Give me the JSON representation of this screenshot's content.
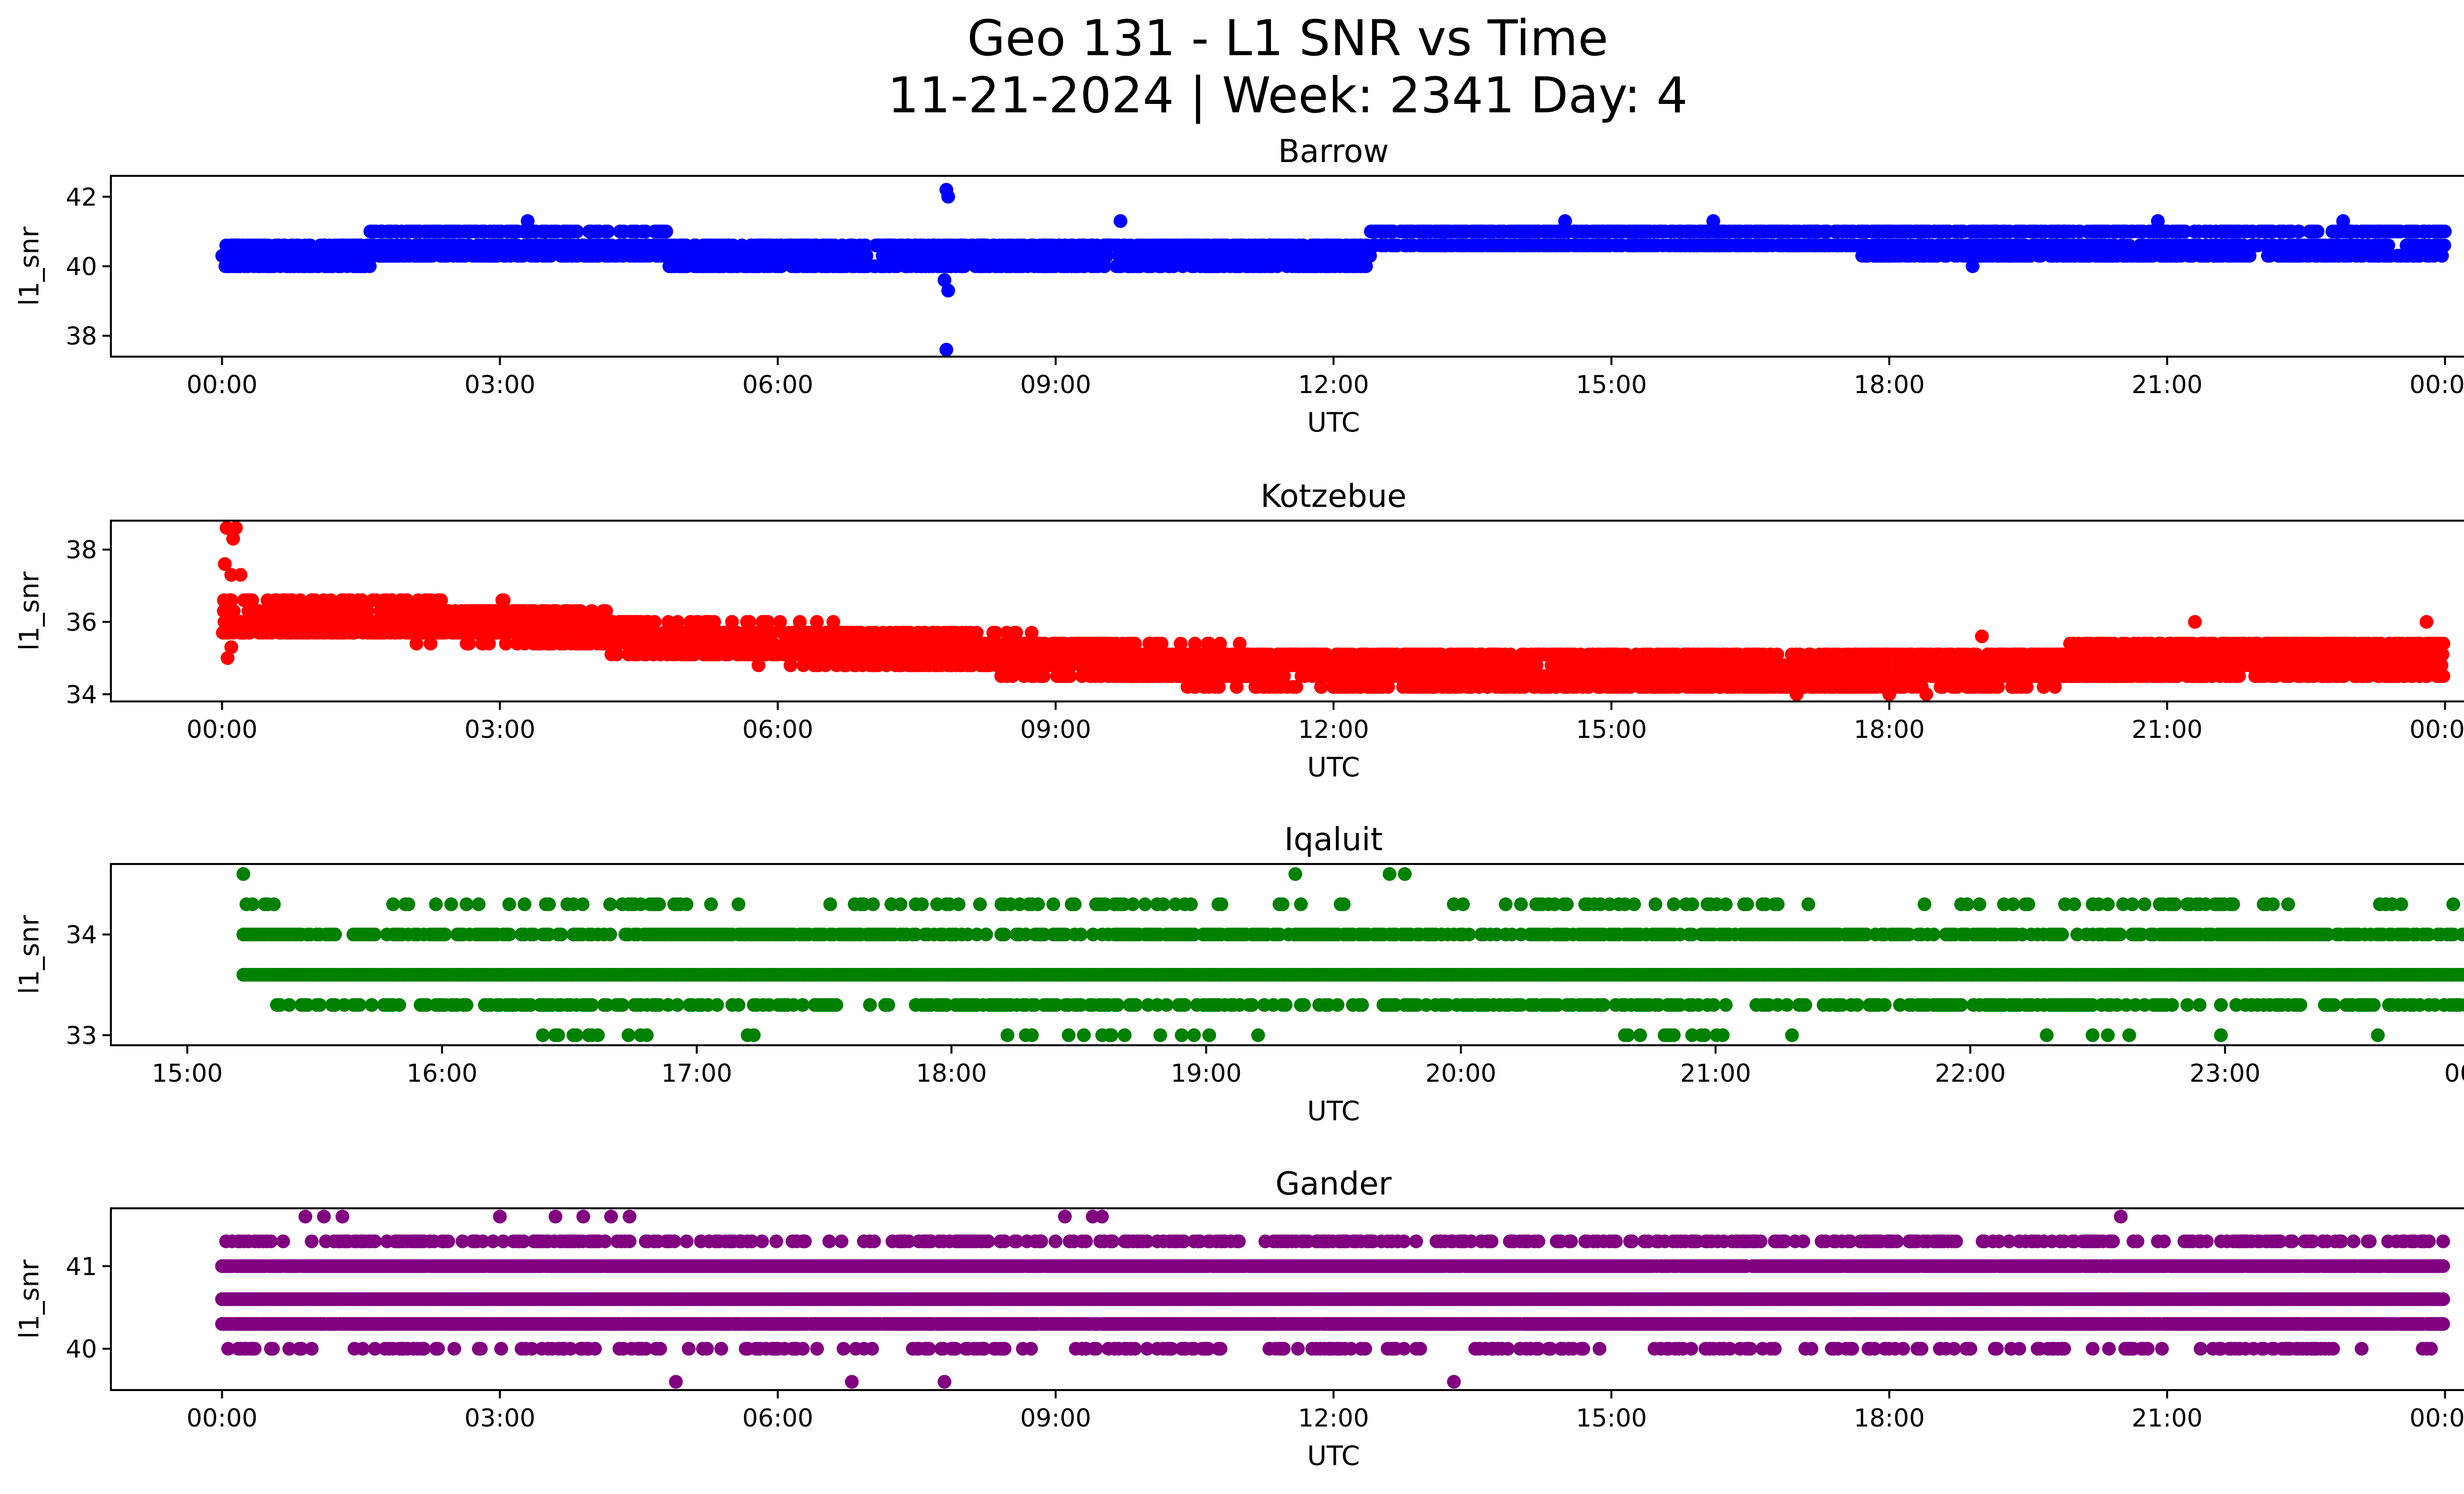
{
  "figure": {
    "title_line1": "Geo 131 - L1 SNR vs Time",
    "title_line2": "11-21-2024 | Week: 2341 Day: 4"
  },
  "chart_data": [
    {
      "type": "scatter",
      "title": "Barrow",
      "xlabel": "UTC",
      "ylabel": "l1_snr",
      "color": "#0000ff",
      "xlim_hours": [
        -1.2,
        25.2
      ],
      "ylim": [
        37.4,
        42.6
      ],
      "xticks": [
        0,
        3,
        6,
        9,
        12,
        15,
        18,
        21,
        24
      ],
      "xtick_labels": [
        "00:00",
        "03:00",
        "06:00",
        "09:00",
        "12:00",
        "15:00",
        "18:00",
        "21:00",
        "00:00"
      ],
      "yticks": [
        38,
        40,
        42
      ],
      "ytick_labels": [
        "38",
        "40",
        "42"
      ],
      "levels": [
        40.0,
        40.3,
        40.6,
        41.0,
        41.3
      ],
      "segments": [
        {
          "x_start": 0,
          "x_end": 1.6,
          "base": 40.3,
          "spread": 0.35
        },
        {
          "x_start": 1.6,
          "x_end": 4.8,
          "base": 40.6,
          "spread": 0.45
        },
        {
          "x_start": 4.8,
          "x_end": 9.5,
          "base": 40.3,
          "spread": 0.4
        },
        {
          "x_start": 9.5,
          "x_end": 12.4,
          "base": 40.4,
          "spread": 0.45
        },
        {
          "x_start": 12.4,
          "x_end": 17.7,
          "base": 40.8,
          "spread": 0.4
        },
        {
          "x_start": 17.7,
          "x_end": 24,
          "base": 40.6,
          "spread": 0.45
        }
      ],
      "outliers": [
        {
          "x": 7.82,
          "y": 42.2
        },
        {
          "x": 7.84,
          "y": 42.0
        },
        {
          "x": 7.8,
          "y": 39.6
        },
        {
          "x": 7.84,
          "y": 39.3
        },
        {
          "x": 7.82,
          "y": 37.6
        },
        {
          "x": 3.3,
          "y": 41.3
        },
        {
          "x": 9.7,
          "y": 41.3
        },
        {
          "x": 14.5,
          "y": 41.3
        },
        {
          "x": 16.1,
          "y": 41.3
        },
        {
          "x": 18.9,
          "y": 40.0
        },
        {
          "x": 22.9,
          "y": 41.3
        },
        {
          "x": 20.9,
          "y": 41.3
        }
      ]
    },
    {
      "type": "scatter",
      "title": "Kotzebue",
      "xlabel": "UTC",
      "ylabel": "l1_snr",
      "color": "#ff0000",
      "xlim_hours": [
        -1.2,
        25.2
      ],
      "ylim": [
        33.8,
        38.8
      ],
      "xticks": [
        0,
        3,
        6,
        9,
        12,
        15,
        18,
        21,
        24
      ],
      "xtick_labels": [
        "00:00",
        "03:00",
        "06:00",
        "09:00",
        "12:00",
        "15:00",
        "18:00",
        "21:00",
        "00:00"
      ],
      "yticks": [
        34,
        36,
        38
      ],
      "ytick_labels": [
        "34",
        "36",
        "38"
      ],
      "trend": [
        [
          0,
          36.1
        ],
        [
          3,
          36.0
        ],
        [
          5,
          35.5
        ],
        [
          8,
          35.2
        ],
        [
          10.5,
          34.8
        ],
        [
          12,
          34.7
        ],
        [
          15,
          34.7
        ],
        [
          17,
          34.6
        ],
        [
          19,
          34.7
        ],
        [
          21,
          35.0
        ],
        [
          24,
          35.0
        ]
      ],
      "spread": 0.5,
      "outliers": [
        {
          "x": 0.05,
          "y": 38.6
        },
        {
          "x": 0.15,
          "y": 38.6
        },
        {
          "x": 0.12,
          "y": 38.3
        },
        {
          "x": 0.03,
          "y": 37.6
        },
        {
          "x": 0.1,
          "y": 37.3
        },
        {
          "x": 0.2,
          "y": 37.3
        },
        {
          "x": 0.06,
          "y": 35.0
        },
        {
          "x": 0.1,
          "y": 35.3
        },
        {
          "x": 6.6,
          "y": 36.0
        },
        {
          "x": 19.0,
          "y": 35.6
        },
        {
          "x": 21.3,
          "y": 36.0
        },
        {
          "x": 23.8,
          "y": 36.0
        },
        {
          "x": 17.0,
          "y": 34.0
        },
        {
          "x": 18.0,
          "y": 34.0
        },
        {
          "x": 18.4,
          "y": 34.0
        }
      ]
    },
    {
      "type": "scatter",
      "title": "Iqaluit",
      "xlabel": "UTC",
      "ylabel": "l1_snr",
      "color": "#008000",
      "xlim_hours": [
        14.7,
        24.3
      ],
      "ylim": [
        32.9,
        34.7
      ],
      "xticks": [
        15,
        16,
        17,
        18,
        19,
        20,
        21,
        22,
        23,
        24
      ],
      "xtick_labels": [
        "15:00",
        "16:00",
        "17:00",
        "18:00",
        "19:00",
        "20:00",
        "21:00",
        "22:00",
        "23:00",
        "00:00"
      ],
      "yticks": [
        33,
        34
      ],
      "ytick_labels": [
        "33",
        "34"
      ],
      "data_start_hour": 15.22,
      "levels": [
        33.0,
        33.3,
        33.6,
        34.0,
        34.3,
        34.6
      ],
      "level_density": [
        0.02,
        0.55,
        1.0,
        0.75,
        0.22,
        0.0
      ],
      "outliers": [
        {
          "x": 15.22,
          "y": 34.6
        },
        {
          "x": 19.35,
          "y": 34.6
        },
        {
          "x": 19.72,
          "y": 34.6
        },
        {
          "x": 19.78,
          "y": 34.6
        },
        {
          "x": 18.52,
          "y": 33.0
        },
        {
          "x": 18.62,
          "y": 33.0
        },
        {
          "x": 18.68,
          "y": 33.0
        },
        {
          "x": 21.3,
          "y": 33.0
        },
        {
          "x": 22.3,
          "y": 33.0
        },
        {
          "x": 23.6,
          "y": 33.0
        }
      ]
    },
    {
      "type": "scatter",
      "title": "Gander",
      "xlabel": "UTC",
      "ylabel": "l1_snr",
      "color": "#800080",
      "xlim_hours": [
        -1.2,
        25.2
      ],
      "ylim": [
        39.5,
        41.7
      ],
      "xticks": [
        0,
        3,
        6,
        9,
        12,
        15,
        18,
        21,
        24
      ],
      "xtick_labels": [
        "00:00",
        "03:00",
        "06:00",
        "09:00",
        "12:00",
        "15:00",
        "18:00",
        "21:00",
        "00:00"
      ],
      "yticks": [
        40,
        41
      ],
      "ytick_labels": [
        "40",
        "41"
      ],
      "levels": [
        39.6,
        40.0,
        40.3,
        40.6,
        41.0,
        41.3,
        41.6
      ],
      "level_density": [
        0.0,
        0.28,
        0.97,
        1.0,
        0.97,
        0.4,
        0.0
      ],
      "outliers": [
        {
          "x": 0.9,
          "y": 41.6
        },
        {
          "x": 1.1,
          "y": 41.6
        },
        {
          "x": 1.3,
          "y": 41.6
        },
        {
          "x": 3.0,
          "y": 41.6
        },
        {
          "x": 3.6,
          "y": 41.6
        },
        {
          "x": 3.9,
          "y": 41.6
        },
        {
          "x": 4.2,
          "y": 41.6
        },
        {
          "x": 4.4,
          "y": 41.6
        },
        {
          "x": 9.1,
          "y": 41.6
        },
        {
          "x": 9.4,
          "y": 41.6
        },
        {
          "x": 9.5,
          "y": 41.6
        },
        {
          "x": 20.5,
          "y": 41.6
        },
        {
          "x": 4.9,
          "y": 39.6
        },
        {
          "x": 6.8,
          "y": 39.6
        },
        {
          "x": 7.8,
          "y": 39.6
        },
        {
          "x": 13.3,
          "y": 39.6
        }
      ]
    }
  ]
}
